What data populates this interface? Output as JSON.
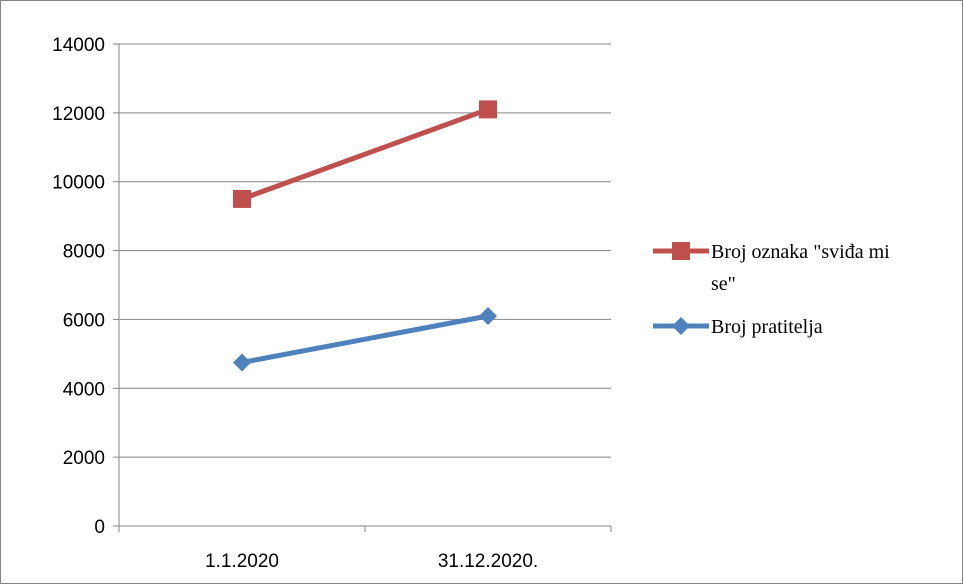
{
  "chart_data": {
    "type": "line",
    "categories": [
      "1.1.2020",
      "31.12.2020."
    ],
    "series": [
      {
        "name": "Broj oznaka \"sviđa mi se\"",
        "values": [
          9500,
          12100
        ],
        "color": "#c0504d",
        "marker": "square"
      },
      {
        "name": "Broj pratitelja",
        "values": [
          4750,
          6100
        ],
        "color": "#4f81bd",
        "marker": "diamond"
      }
    ],
    "yticks": [
      0,
      2000,
      4000,
      6000,
      8000,
      10000,
      12000,
      14000
    ],
    "ylim": [
      0,
      14000
    ],
    "grid": true,
    "legend": "right",
    "legend_items": [
      {
        "line1": "Broj oznaka \"sviđa mi",
        "line2": "se\""
      },
      {
        "line1": "Broj pratitelja"
      }
    ]
  }
}
